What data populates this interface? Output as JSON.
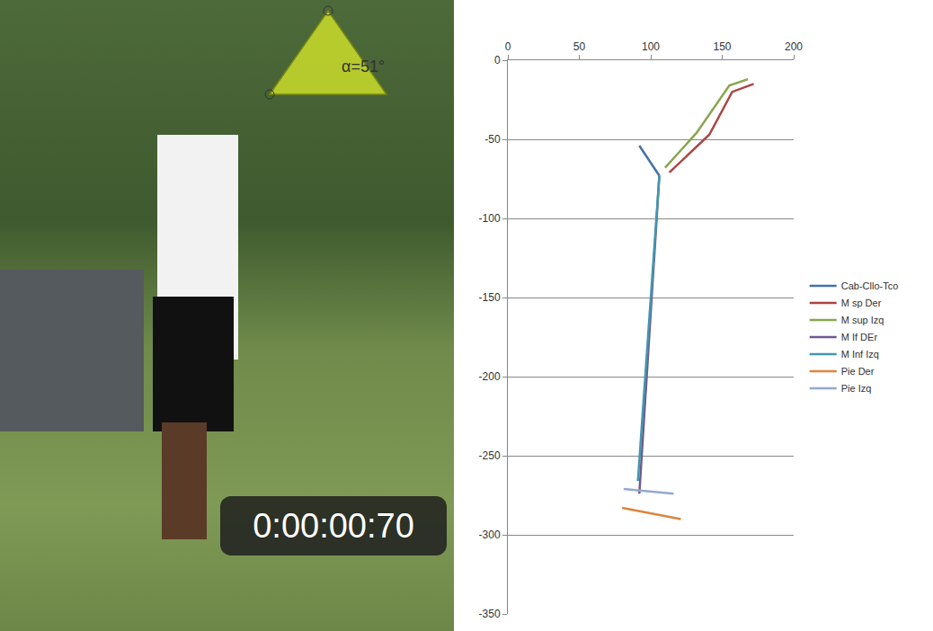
{
  "photo": {
    "angle_label": "α=51°",
    "timestamp": "0:00:00:70"
  },
  "chart_data": {
    "type": "line",
    "xlim": [
      0,
      200
    ],
    "xticks": [
      0,
      50,
      100,
      150,
      200
    ],
    "ylim": [
      -350,
      0
    ],
    "yticks": [
      -350,
      -300,
      -250,
      -200,
      -150,
      -100,
      -50,
      0
    ],
    "grid": true,
    "legend": "right",
    "series": [
      {
        "name": "Cab-Cllo-Tco",
        "color": "#4572A7",
        "x": [
          92,
          106
        ],
        "values": [
          -54,
          -73
        ]
      },
      {
        "name": "M sp Der",
        "color": "#AA4643",
        "x": [
          113,
          141,
          157,
          172
        ],
        "values": [
          -71,
          -47,
          -20,
          -15
        ]
      },
      {
        "name": "M sup Izq",
        "color": "#89A54E",
        "x": [
          110,
          132,
          155,
          168
        ],
        "values": [
          -68,
          -46,
          -16,
          -12
        ]
      },
      {
        "name": "M If DEr",
        "color": "#71588F",
        "x": [
          106,
          92
        ],
        "values": [
          -73,
          -274
        ]
      },
      {
        "name": "M Inf Izq",
        "color": "#4198AF",
        "x": [
          106,
          91
        ],
        "values": [
          -73,
          -266
        ]
      },
      {
        "name": "Pie Der",
        "color": "#DB843D",
        "x": [
          80,
          121
        ],
        "values": [
          -283,
          -290
        ]
      },
      {
        "name": "Pie Izq",
        "color": "#93A9CF",
        "x": [
          81,
          116
        ],
        "values": [
          -271,
          -274
        ]
      }
    ]
  }
}
